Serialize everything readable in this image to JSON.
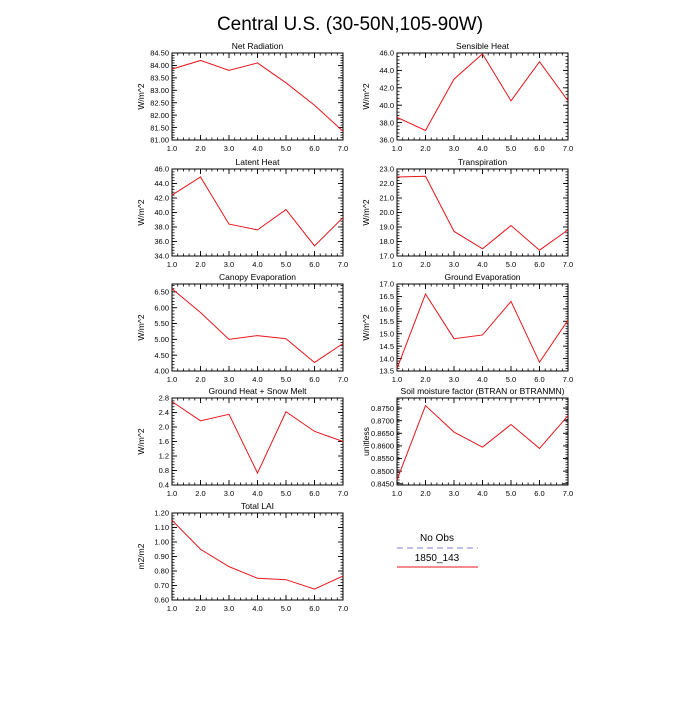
{
  "title": "Central U.S. (30-50N,105-90W)",
  "legend": {
    "placement": "bottom-right panel slot",
    "entries": [
      {
        "label": "No Obs",
        "color": "#9999dd",
        "style": "dashed"
      },
      {
        "label": "1850_143",
        "color": "#e8161b",
        "style": "solid"
      }
    ]
  },
  "chart_data": [
    {
      "type": "line",
      "title": "Net Radiation",
      "ylabel": "W/m^2",
      "x": [
        1.0,
        2.0,
        3.0,
        4.0,
        5.0,
        6.0,
        7.0
      ],
      "xticks": [
        "1.0",
        "2.0",
        "3.0",
        "4.0",
        "5.0",
        "6.0",
        "7.0"
      ],
      "xlim": [
        1.0,
        7.0
      ],
      "ylim": [
        81.0,
        84.5
      ],
      "yticks": [
        "81.00",
        "81.50",
        "82.00",
        "82.50",
        "83.00",
        "83.50",
        "84.00",
        "84.50"
      ],
      "yminor": 0.1,
      "series": [
        {
          "name": "1850_143",
          "color": "#e8161b",
          "values": [
            83.85,
            84.2,
            83.8,
            84.1,
            83.3,
            82.4,
            81.35
          ]
        }
      ]
    },
    {
      "type": "line",
      "title": "Sensible Heat",
      "ylabel": "W/m^2",
      "x": [
        1.0,
        2.0,
        3.0,
        4.0,
        5.0,
        6.0,
        7.0
      ],
      "xticks": [
        "1.0",
        "2.0",
        "3.0",
        "4.0",
        "5.0",
        "6.0",
        "7.0"
      ],
      "xlim": [
        1.0,
        7.0
      ],
      "ylim": [
        36.0,
        46.0
      ],
      "yticks": [
        "36.0",
        "38.0",
        "40.0",
        "42.0",
        "44.0",
        "46.0"
      ],
      "yminor": 0.4,
      "series": [
        {
          "name": "1850_143",
          "color": "#e8161b",
          "values": [
            38.6,
            37.1,
            43.0,
            45.9,
            40.5,
            45.0,
            40.5
          ]
        }
      ]
    },
    {
      "type": "line",
      "title": "Latent Heat",
      "ylabel": "W/m^2",
      "x": [
        1.0,
        2.0,
        3.0,
        4.0,
        5.0,
        6.0,
        7.0
      ],
      "xticks": [
        "1.0",
        "2.0",
        "3.0",
        "4.0",
        "5.0",
        "6.0",
        "7.0"
      ],
      "xlim": [
        1.0,
        7.0
      ],
      "ylim": [
        34.0,
        46.0
      ],
      "yticks": [
        "34.0",
        "36.0",
        "38.0",
        "40.0",
        "42.0",
        "44.0",
        "46.0"
      ],
      "yminor": 0.4,
      "series": [
        {
          "name": "1850_143",
          "color": "#e8161b",
          "values": [
            42.4,
            44.9,
            38.4,
            37.6,
            40.4,
            35.4,
            39.3
          ]
        }
      ]
    },
    {
      "type": "line",
      "title": "Transpiration",
      "ylabel": "W/m^2",
      "x": [
        1.0,
        2.0,
        3.0,
        4.0,
        5.0,
        6.0,
        7.0
      ],
      "xticks": [
        "1.0",
        "2.0",
        "3.0",
        "4.0",
        "5.0",
        "6.0",
        "7.0"
      ],
      "xlim": [
        1.0,
        7.0
      ],
      "ylim": [
        17.0,
        23.0
      ],
      "yticks": [
        "17.0",
        "18.0",
        "19.0",
        "20.0",
        "21.0",
        "22.0",
        "23.0"
      ],
      "yminor": 0.2,
      "series": [
        {
          "name": "1850_143",
          "color": "#e8161b",
          "values": [
            22.45,
            22.5,
            18.7,
            17.5,
            19.1,
            17.4,
            18.8
          ]
        }
      ]
    },
    {
      "type": "line",
      "title": "Canopy Evaporation",
      "ylabel": "W/m^2",
      "x": [
        1.0,
        2.0,
        3.0,
        4.0,
        5.0,
        6.0,
        7.0
      ],
      "xticks": [
        "1.0",
        "2.0",
        "3.0",
        "4.0",
        "5.0",
        "6.0",
        "7.0"
      ],
      "xlim": [
        1.0,
        7.0
      ],
      "ylim": [
        4.0,
        6.75
      ],
      "yticks": [
        "4.00",
        "4.50",
        "5.00",
        "5.50",
        "6.00",
        "6.50"
      ],
      "yminor": 0.1,
      "series": [
        {
          "name": "1850_143",
          "color": "#e8161b",
          "values": [
            6.6,
            5.85,
            5.0,
            5.12,
            5.02,
            4.27,
            4.87
          ]
        }
      ]
    },
    {
      "type": "line",
      "title": "Ground Evaporation",
      "ylabel": "W/m^2",
      "x": [
        1.0,
        2.0,
        3.0,
        4.0,
        5.0,
        6.0,
        7.0
      ],
      "xticks": [
        "1.0",
        "2.0",
        "3.0",
        "4.0",
        "5.0",
        "6.0",
        "7.0"
      ],
      "xlim": [
        1.0,
        7.0
      ],
      "ylim": [
        13.5,
        17.0
      ],
      "yticks": [
        "13.5",
        "14.0",
        "14.5",
        "15.0",
        "15.5",
        "16.0",
        "16.5",
        "17.0"
      ],
      "yminor": 0.1,
      "series": [
        {
          "name": "1850_143",
          "color": "#e8161b",
          "values": [
            13.6,
            16.6,
            14.8,
            14.95,
            16.3,
            13.85,
            15.55
          ]
        }
      ]
    },
    {
      "type": "line",
      "title": "Ground Heat + Snow Melt",
      "ylabel": "W/m^2",
      "x": [
        1.0,
        2.0,
        3.0,
        4.0,
        5.0,
        6.0,
        7.0
      ],
      "xticks": [
        "1.0",
        "2.0",
        "3.0",
        "4.0",
        "5.0",
        "6.0",
        "7.0"
      ],
      "xlim": [
        1.0,
        7.0
      ],
      "ylim": [
        0.4,
        2.8
      ],
      "yticks": [
        "0.4",
        "0.8",
        "1.2",
        "1.6",
        "2.0",
        "2.4",
        "2.8"
      ],
      "yminor": 0.08,
      "series": [
        {
          "name": "1850_143",
          "color": "#e8161b",
          "values": [
            2.7,
            2.17,
            2.35,
            0.73,
            2.42,
            1.88,
            1.6
          ]
        }
      ]
    },
    {
      "type": "line",
      "title": "Soil moisture factor (BTRAN or BTRANMN)",
      "ylabel": "unitless",
      "x": [
        1.0,
        2.0,
        3.0,
        4.0,
        5.0,
        6.0,
        7.0
      ],
      "xticks": [
        "1.0",
        "2.0",
        "3.0",
        "4.0",
        "5.0",
        "6.0",
        "7.0"
      ],
      "xlim": [
        1.0,
        7.0
      ],
      "ylim": [
        0.8445,
        0.879
      ],
      "yticks": [
        "0.8450",
        "0.8500",
        "0.8550",
        "0.8600",
        "0.8650",
        "0.8700",
        "0.8750"
      ],
      "yminor": 0.001,
      "series": [
        {
          "name": "1850_143",
          "color": "#e8161b",
          "values": [
            0.8465,
            0.876,
            0.8655,
            0.8595,
            0.8685,
            0.859,
            0.872
          ]
        }
      ]
    },
    {
      "type": "line",
      "title": "Total LAI",
      "ylabel": "m2/m2",
      "x": [
        1.0,
        2.0,
        3.0,
        4.0,
        5.0,
        6.0,
        7.0
      ],
      "xticks": [
        "1.0",
        "2.0",
        "3.0",
        "4.0",
        "5.0",
        "6.0",
        "7.0"
      ],
      "xlim": [
        1.0,
        7.0
      ],
      "ylim": [
        0.6,
        1.2
      ],
      "yticks": [
        "0.60",
        "0.70",
        "0.80",
        "0.90",
        "1.00",
        "1.10",
        "1.20"
      ],
      "yminor": 0.02,
      "series": [
        {
          "name": "1850_143",
          "color": "#e8161b",
          "values": [
            1.15,
            0.95,
            0.83,
            0.75,
            0.74,
            0.675,
            0.765
          ]
        }
      ]
    }
  ]
}
